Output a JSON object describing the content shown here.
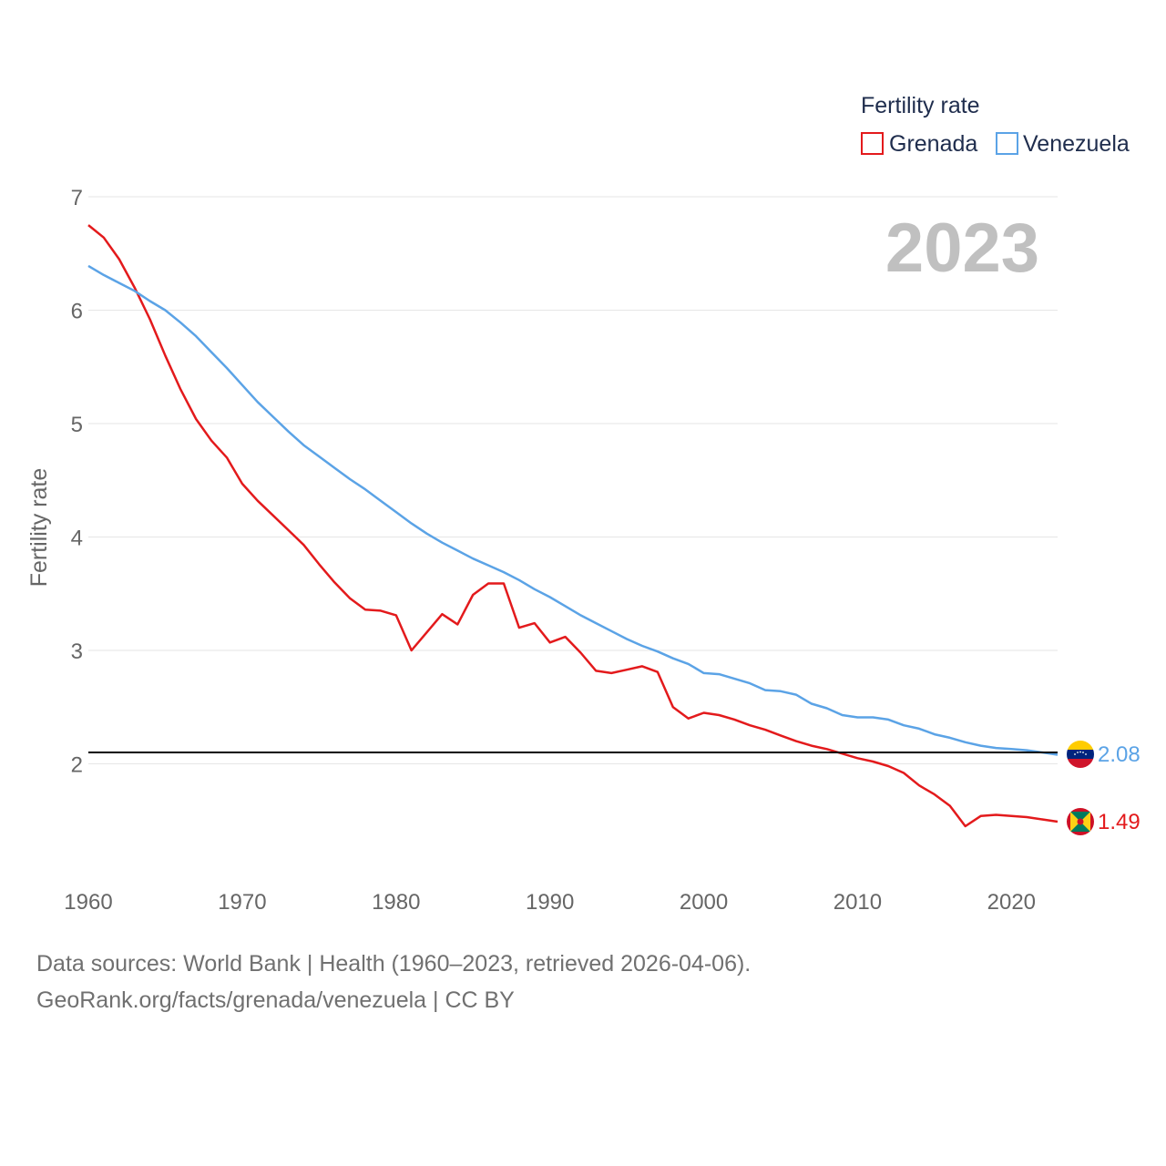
{
  "chart_data": {
    "type": "line",
    "legend_title": "Fertility rate",
    "ylabel": "Fertility rate",
    "year_label": "2023",
    "xlim": [
      1960,
      2023
    ],
    "ylim": [
      1.0,
      7.0
    ],
    "x_ticks": [
      1960,
      1970,
      1980,
      1990,
      2000,
      2010,
      2020
    ],
    "y_ticks": [
      2,
      3,
      4,
      5,
      6,
      7
    ],
    "reference_line": 2.1,
    "x": [
      1960,
      1961,
      1962,
      1963,
      1964,
      1965,
      1966,
      1967,
      1968,
      1969,
      1970,
      1971,
      1972,
      1973,
      1974,
      1975,
      1976,
      1977,
      1978,
      1979,
      1980,
      1981,
      1982,
      1983,
      1984,
      1985,
      1986,
      1987,
      1988,
      1989,
      1990,
      1991,
      1992,
      1993,
      1994,
      1995,
      1996,
      1997,
      1998,
      1999,
      2000,
      2001,
      2002,
      2003,
      2004,
      2005,
      2006,
      2007,
      2008,
      2009,
      2010,
      2011,
      2012,
      2013,
      2014,
      2015,
      2016,
      2017,
      2018,
      2019,
      2020,
      2021,
      2022,
      2023
    ],
    "series": [
      {
        "name": "Grenada",
        "color": "#e31a1c",
        "end_label": "1.49",
        "values": [
          6.75,
          6.64,
          6.45,
          6.2,
          5.92,
          5.6,
          5.3,
          5.04,
          4.85,
          4.7,
          4.47,
          4.32,
          4.19,
          4.06,
          3.93,
          3.76,
          3.6,
          3.46,
          3.36,
          3.35,
          3.31,
          3.0,
          3.16,
          3.32,
          3.23,
          3.49,
          3.59,
          3.59,
          3.2,
          3.24,
          3.07,
          3.12,
          2.98,
          2.82,
          2.8,
          2.83,
          2.86,
          2.81,
          2.5,
          2.4,
          2.45,
          2.43,
          2.39,
          2.34,
          2.3,
          2.25,
          2.2,
          2.16,
          2.13,
          2.09,
          2.05,
          2.02,
          1.98,
          1.92,
          1.81,
          1.73,
          1.63,
          1.45,
          1.54,
          1.55,
          1.54,
          1.53,
          1.51,
          1.49
        ]
      },
      {
        "name": "Venezuela",
        "color": "#5ba3e6",
        "end_label": "2.08",
        "values": [
          6.39,
          6.31,
          6.24,
          6.17,
          6.08,
          6.0,
          5.89,
          5.77,
          5.63,
          5.49,
          5.34,
          5.19,
          5.06,
          4.93,
          4.81,
          4.71,
          4.61,
          4.51,
          4.42,
          4.32,
          4.22,
          4.12,
          4.03,
          3.95,
          3.88,
          3.81,
          3.75,
          3.69,
          3.62,
          3.54,
          3.47,
          3.39,
          3.31,
          3.24,
          3.17,
          3.1,
          3.04,
          2.99,
          2.93,
          2.88,
          2.8,
          2.79,
          2.75,
          2.71,
          2.65,
          2.64,
          2.61,
          2.53,
          2.49,
          2.43,
          2.41,
          2.41,
          2.39,
          2.34,
          2.31,
          2.26,
          2.23,
          2.19,
          2.16,
          2.14,
          2.13,
          2.12,
          2.1,
          2.08
        ]
      }
    ]
  },
  "footer": {
    "sources": "Data sources: World Bank | Health (1960–2023, retrieved 2026-04-06).",
    "link": "GeoRank.org/facts/grenada/venezuela | CC BY"
  }
}
